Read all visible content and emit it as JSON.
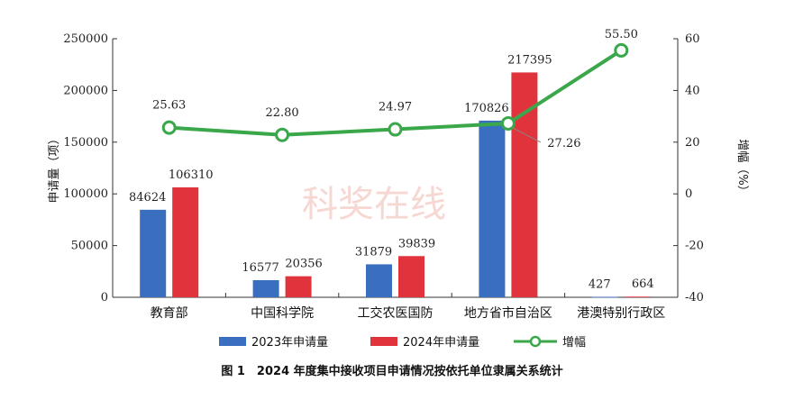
{
  "chart_data": {
    "type": "bar",
    "categories": [
      "教育部",
      "中国科学院",
      "工交农医国防",
      "地方省市自治区",
      "港澳特别行政区"
    ],
    "series": [
      {
        "name": "2023年申请量",
        "type": "bar",
        "axis": "left",
        "color": "#3a6fbf",
        "values": [
          84624,
          16577,
          31879,
          170826,
          427
        ],
        "labels": [
          "84624",
          "16577",
          "31879",
          "170826",
          "427"
        ]
      },
      {
        "name": "2024年申请量",
        "type": "bar",
        "axis": "left",
        "color": "#e0333c",
        "values": [
          106310,
          20356,
          39839,
          217395,
          664
        ],
        "labels": [
          "106310",
          "20356",
          "39839",
          "217395",
          "664"
        ]
      },
      {
        "name": "增幅",
        "type": "line",
        "axis": "right",
        "color": "#3aa84a",
        "values": [
          25.63,
          22.8,
          24.97,
          27.26,
          55.5
        ],
        "labels": [
          "25.63",
          "22.80",
          "24.97",
          "27.26",
          "55.50"
        ]
      }
    ],
    "ylabel": "申请量（项）",
    "y2label": "增幅（%）",
    "ylim": [
      0,
      250000
    ],
    "y2lim": [
      -40,
      60
    ],
    "yticks": [
      "0",
      "50000",
      "100000",
      "150000",
      "200000",
      "250000"
    ],
    "y2ticks": [
      "-40",
      "-20",
      "0",
      "20",
      "40",
      "60"
    ],
    "legend_position": "bottom",
    "grid": false
  },
  "caption": "图 1　2024 年度集中接收项目申请情况按依托单位隶属关系统计",
  "watermark": "科奖在线"
}
